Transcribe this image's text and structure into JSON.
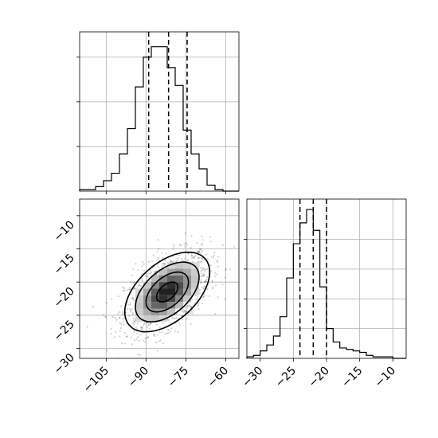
{
  "chart_data": [
    {
      "panel": "top-left",
      "type": "histogram",
      "xlim": [
        -115,
        -55
      ],
      "ylim": [
        0,
        1.07
      ],
      "bin_edges": [
        -115,
        -112,
        -109,
        -106,
        -103,
        -100,
        -97,
        -94,
        -91,
        -88,
        -85,
        -82,
        -79,
        -76,
        -73,
        -70,
        -67,
        -64,
        -61,
        -58,
        -55
      ],
      "counts": [
        0.01,
        0.01,
        0.03,
        0.07,
        0.12,
        0.25,
        0.42,
        0.7,
        0.9,
        0.97,
        0.97,
        0.83,
        0.71,
        0.41,
        0.25,
        0.15,
        0.04,
        0.01,
        0,
        0
      ],
      "quantile_lines": [
        -89,
        -81.5,
        -74.5
      ],
      "x_ticks": [
        -105,
        -90,
        -75,
        -60
      ],
      "x_tick_labels": [],
      "y_ticks": [
        0.3,
        0.6,
        0.9
      ]
    },
    {
      "panel": "bottom-left",
      "type": "2d-density",
      "xlim": [
        -115,
        -55
      ],
      "ylim": [
        -31.5,
        -7.5
      ],
      "x_ticks": [
        -105,
        -90,
        -75,
        -60
      ],
      "x_tick_labels": [
        "−105",
        "−90",
        "−75",
        "−60"
      ],
      "y_ticks": [
        -30,
        -25,
        -20,
        -15,
        -10
      ],
      "y_tick_labels": [
        "−30",
        "−25",
        "−20",
        "−15",
        "−10"
      ],
      "center": [
        -82,
        -21.5
      ],
      "sigma": [
        8,
        3
      ],
      "correlation": 0.5,
      "contour_levels_sigma": [
        0.5,
        1,
        1.5,
        2
      ]
    },
    {
      "panel": "bottom-right",
      "type": "histogram",
      "xlim": [
        -32,
        -8
      ],
      "ylim": [
        0,
        1.07
      ],
      "bin_edges": [
        -32,
        -31,
        -30,
        -29,
        -28,
        -27,
        -26,
        -25,
        -24,
        -23,
        -22,
        -21,
        -20,
        -19,
        -18,
        -17,
        -16,
        -15,
        -14,
        -13,
        -12,
        -11,
        -10,
        -9,
        -8
      ],
      "counts": [
        0.01,
        0.02,
        0.05,
        0.09,
        0.15,
        0.28,
        0.54,
        0.77,
        0.91,
        1.0,
        0.86,
        0.48,
        0.2,
        0.11,
        0.07,
        0.06,
        0.05,
        0.04,
        0.02,
        0.01,
        0.01,
        0.01,
        0,
        0
      ],
      "quantile_lines": [
        -24,
        -22,
        -20
      ],
      "x_ticks": [
        -30,
        -25,
        -20,
        -15,
        -10
      ],
      "x_tick_labels": [
        "−30",
        "−25",
        "−20",
        "−15",
        "−10"
      ],
      "y_ticks": [
        0.2,
        0.4,
        0.6,
        0.8
      ]
    }
  ]
}
